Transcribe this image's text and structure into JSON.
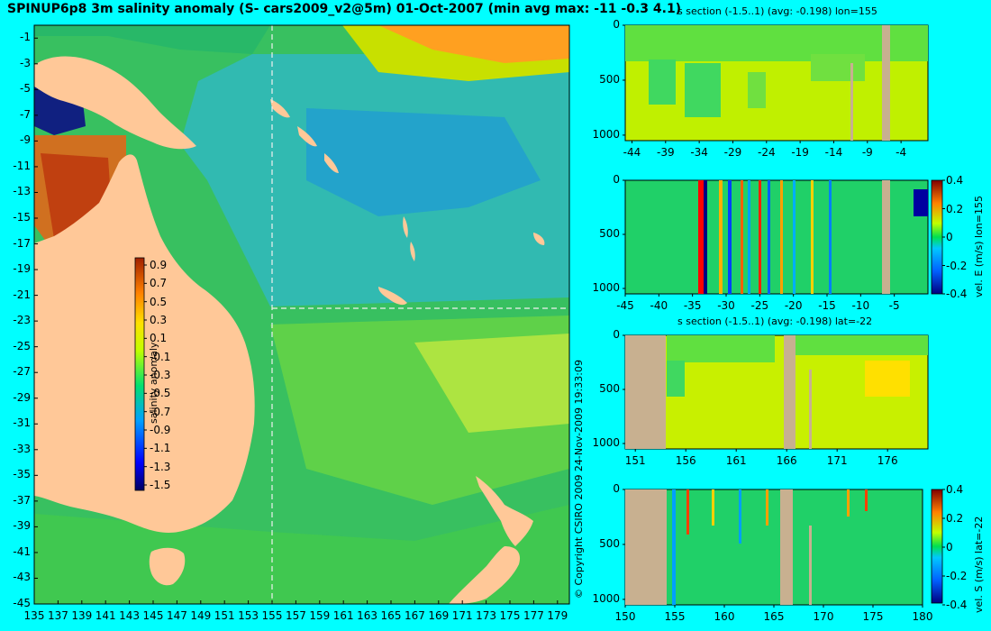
{
  "map": {
    "title": "SPINUP6p8 3m salinity anomaly (S- cars2009_v2@5m) 01-Oct-2007 (min avg max: -11 -0.3 4.1)",
    "lat_ticks": [
      "-1",
      "-3",
      "-5",
      "-7",
      "-9",
      "-11",
      "-13",
      "-15",
      "-17",
      "-19",
      "-21",
      "-23",
      "-25",
      "-27",
      "-29",
      "-31",
      "-33",
      "-35",
      "-37",
      "-39",
      "-41",
      "-43",
      "-45"
    ],
    "lon_ticks": [
      "135",
      "137",
      "139",
      "141",
      "143",
      "145",
      "147",
      "149",
      "151",
      "153",
      "155",
      "157",
      "159",
      "161",
      "163",
      "165",
      "167",
      "169",
      "171",
      "173",
      "175",
      "177",
      "179"
    ],
    "colorbar_ticks": [
      "0.9",
      "0.7",
      "0.5",
      "0.3",
      "0.1",
      "-0.1",
      "-0.3",
      "-0.5",
      "-0.7",
      "-0.9",
      "-1.1",
      "-1.3",
      "-1.5"
    ],
    "colorbar_label": "salinity anomaly",
    "section_lon": "155",
    "section_lat": "-22"
  },
  "copyright": "© Copyright CSIRO 2009  24-Nov-2009 19:33:09",
  "panels": [
    {
      "title": "s section (-1.5..1) (avg: -0.198) lon=155",
      "xticks": [
        "-44",
        "-39",
        "-34",
        "-29",
        "-24",
        "-19",
        "-14",
        "-9",
        "-4"
      ],
      "yticks": [
        "0",
        "500",
        "1000"
      ],
      "side_label": "",
      "cbar_ticks": []
    },
    {
      "title": "",
      "xticks": [
        "-45",
        "-40",
        "-35",
        "-30",
        "-25",
        "-20",
        "-15",
        "-10",
        "-5"
      ],
      "yticks": [
        "0",
        "500",
        "1000"
      ],
      "side_label": "vel. E (m/s) lon=155",
      "cbar_ticks": [
        "0.4",
        "0.2",
        "0",
        "-0.2",
        "-0.4"
      ]
    },
    {
      "title": "s section (-1.5..1) (avg: -0.198) lat=-22",
      "xticks": [
        "151",
        "156",
        "161",
        "166",
        "171",
        "176"
      ],
      "yticks": [
        "0",
        "500",
        "1000"
      ],
      "side_label": "",
      "cbar_ticks": []
    },
    {
      "title": "",
      "xticks": [
        "150",
        "155",
        "160",
        "165",
        "170",
        "175",
        "180"
      ],
      "yticks": [
        "0",
        "500",
        "1000"
      ],
      "side_label": "vel. S (m/s) lat=-22",
      "cbar_ticks": [
        "0.4",
        "0.2",
        "0",
        "-0.2",
        "-0.4"
      ]
    }
  ],
  "chart_data": [
    {
      "type": "heatmap",
      "title": "SPINUP6p8 3m salinity anomaly (S- cars2009_v2@5m) 01-Oct-2007 (min avg max: -11 -0.3 4.1)",
      "x_range": [
        135,
        180
      ],
      "y_range": [
        -45,
        0
      ],
      "xlabel": "",
      "ylabel": "",
      "colorbar": {
        "label": "salinity anomaly",
        "range": [
          -1.5,
          1
        ]
      },
      "summary": {
        "min": -11,
        "avg": -0.3,
        "max": 4.1
      },
      "section_lines": {
        "lon": 155,
        "lat": -22
      }
    },
    {
      "type": "heatmap",
      "title": "s section (-1.5..1) (avg: -0.198) lon=155",
      "x_range": [
        -45,
        0
      ],
      "y_range": [
        1050,
        0
      ],
      "avg": -0.198
    },
    {
      "type": "heatmap",
      "title": "",
      "x_range": [
        -45,
        0
      ],
      "y_range": [
        1050,
        0
      ],
      "colorbar": {
        "label": "vel. E (m/s) lon=155",
        "range": [
          -0.4,
          0.4
        ]
      }
    },
    {
      "type": "heatmap",
      "title": "s section (-1.5..1) (avg: -0.198) lat=-22",
      "x_range": [
        150,
        180
      ],
      "y_range": [
        1050,
        0
      ],
      "avg": -0.198
    },
    {
      "type": "heatmap",
      "title": "",
      "x_range": [
        150,
        180
      ],
      "y_range": [
        1050,
        0
      ],
      "colorbar": {
        "label": "vel. S (m/s) lat=-22",
        "range": [
          -0.4,
          0.4
        ]
      }
    }
  ]
}
